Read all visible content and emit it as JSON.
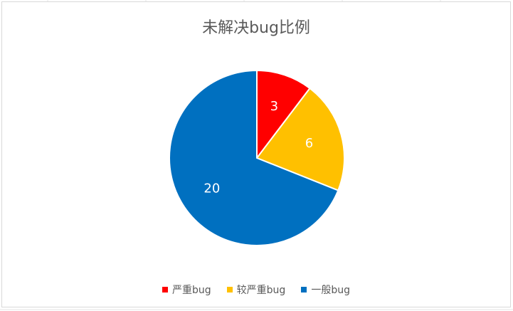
{
  "chart_data": {
    "type": "pie",
    "title": "未解决bug比例",
    "categories": [
      "严重bug",
      "较严重bug",
      "一般bug"
    ],
    "values": [
      3,
      6,
      20
    ],
    "colors": [
      "#ff0000",
      "#ffc000",
      "#0070c0"
    ],
    "data_labels": [
      "3",
      "6",
      "20"
    ],
    "legend": "bottom"
  }
}
